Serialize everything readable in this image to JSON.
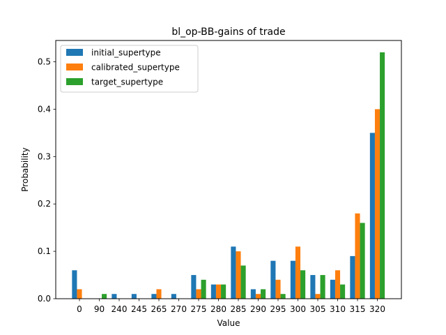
{
  "chart_data": {
    "type": "bar",
    "title": "bl_op-BB-gains of trade",
    "xlabel": "Value",
    "ylabel": "Probability",
    "ylim": [
      0,
      0.545
    ],
    "yticks": [
      "0.0",
      "0.1",
      "0.2",
      "0.3",
      "0.4",
      "0.5"
    ],
    "ytick_values": [
      0,
      0.1,
      0.2,
      0.3,
      0.4,
      0.5
    ],
    "categories": [
      "0",
      "90",
      "240",
      "245",
      "265",
      "270",
      "275",
      "280",
      "285",
      "290",
      "295",
      "300",
      "305",
      "310",
      "315",
      "320"
    ],
    "legend_position": "top-left",
    "grid": false,
    "series": [
      {
        "name": "initial_supertype",
        "color": "#1f77b4",
        "values": [
          0.06,
          0.0,
          0.01,
          0.01,
          0.01,
          0.01,
          0.05,
          0.03,
          0.11,
          0.02,
          0.08,
          0.08,
          0.05,
          0.04,
          0.09,
          0.35
        ]
      },
      {
        "name": "calibrated_supertype",
        "color": "#ff7f0e",
        "values": [
          0.02,
          0.0,
          0.0,
          0.0,
          0.02,
          0.0,
          0.02,
          0.03,
          0.1,
          0.01,
          0.04,
          0.11,
          0.01,
          0.06,
          0.18,
          0.4
        ]
      },
      {
        "name": "target_supertype",
        "color": "#2ca02c",
        "values": [
          0.0,
          0.01,
          0.0,
          0.0,
          0.0,
          0.0,
          0.04,
          0.03,
          0.07,
          0.02,
          0.01,
          0.06,
          0.05,
          0.03,
          0.16,
          0.52
        ]
      }
    ]
  }
}
